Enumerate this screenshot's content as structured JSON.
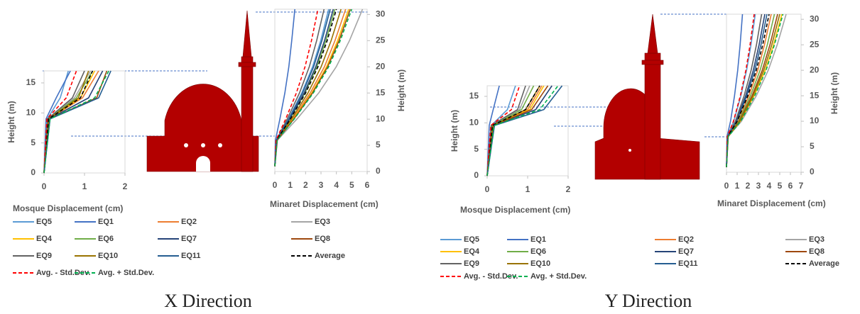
{
  "chart_data": [
    {
      "type": "line",
      "caption": "X Direction",
      "mosque": {
        "xlabel": "Mosque Displacement (cm)",
        "ylabel": "Height (m)",
        "xlim": [
          0,
          2
        ],
        "ylim": [
          0,
          17
        ],
        "xticks": [
          0,
          1,
          2
        ],
        "yticks": [
          0,
          5,
          10,
          15
        ],
        "heights": [
          0,
          9,
          12.5,
          17
        ]
      },
      "minaret": {
        "xlabel": "Minaret Displacement (cm)",
        "ylabel": "Height (m)",
        "xlim": [
          0,
          6
        ],
        "ylim": [
          0,
          31
        ],
        "xticks": [
          0,
          1,
          2,
          3,
          4,
          5,
          6
        ],
        "yticks": [
          0,
          5,
          10,
          15,
          20,
          25,
          30
        ],
        "heights": [
          1,
          6,
          10,
          15,
          20,
          25,
          31
        ]
      },
      "series": [
        {
          "name": "EQ5",
          "color": "#5b9bd5",
          "dash": false,
          "mosque": [
            0,
            0.08,
            0.4,
            0.6
          ],
          "minaret": [
            0,
            0.1,
            0.88,
            1.75,
            2.45,
            2.98,
            3.5
          ]
        },
        {
          "name": "EQ1",
          "color": "#4472c4",
          "dash": false,
          "mosque": [
            0,
            0.05,
            0.3,
            0.65
          ],
          "minaret": [
            0,
            0.04,
            0.33,
            0.65,
            0.91,
            1.1,
            1.3
          ]
        },
        {
          "name": "EQ2",
          "color": "#ed7d31",
          "dash": false,
          "mosque": [
            0,
            0.12,
            0.95,
            1.35
          ],
          "minaret": [
            0,
            0.14,
            1.15,
            2.3,
            3.22,
            3.91,
            4.6
          ]
        },
        {
          "name": "EQ3",
          "color": "#a5a5a5",
          "dash": false,
          "mosque": [
            0,
            0.1,
            0.75,
            1.15
          ],
          "minaret": [
            0,
            0.17,
            1.43,
            2.85,
            3.99,
            4.85,
            5.7
          ]
        },
        {
          "name": "EQ4",
          "color": "#ffc000",
          "dash": false,
          "mosque": [
            0,
            0.12,
            0.9,
            1.25
          ],
          "minaret": [
            0,
            0.14,
            1.2,
            2.4,
            3.36,
            4.08,
            4.8
          ]
        },
        {
          "name": "EQ6",
          "color": "#70ad47",
          "dash": false,
          "mosque": [
            0,
            0.1,
            0.8,
            1.2
          ],
          "minaret": [
            0,
            0.12,
            0.98,
            1.95,
            2.73,
            3.32,
            3.9
          ]
        },
        {
          "name": "EQ7",
          "color": "#264478",
          "dash": false,
          "mosque": [
            0,
            0.13,
            1.1,
            1.45
          ],
          "minaret": [
            0,
            0.11,
            0.95,
            1.9,
            2.66,
            3.23,
            3.8
          ]
        },
        {
          "name": "EQ8",
          "color": "#9e480e",
          "dash": false,
          "mosque": [
            0,
            0.14,
            1.3,
            1.55
          ],
          "minaret": [
            0,
            0.15,
            1.23,
            2.45,
            3.43,
            4.17,
            4.9
          ]
        },
        {
          "name": "EQ9",
          "color": "#636363",
          "dash": false,
          "mosque": [
            0,
            0.09,
            0.7,
            1.0
          ],
          "minaret": [
            0,
            0.1,
            0.8,
            1.6,
            2.24,
            2.72,
            3.2
          ]
        },
        {
          "name": "EQ10",
          "color": "#997300",
          "dash": false,
          "mosque": [
            0,
            0.11,
            0.85,
            1.1
          ],
          "minaret": [
            0,
            0.13,
            1.08,
            2.15,
            3.01,
            3.66,
            4.3
          ]
        },
        {
          "name": "EQ11",
          "color": "#255e91",
          "dash": false,
          "mosque": [
            0,
            0.15,
            1.35,
            1.65
          ],
          "minaret": [
            0,
            0.11,
            0.9,
            1.8,
            2.52,
            3.06,
            3.6
          ]
        },
        {
          "name": "Average",
          "color": "#000000",
          "dash": true,
          "mosque": [
            0,
            0.11,
            0.9,
            1.2
          ],
          "minaret": [
            0,
            0.12,
            1.0,
            2.0,
            2.8,
            3.4,
            4.0
          ]
        },
        {
          "name": "Avg. - Std.Dev.",
          "color": "#ff0000",
          "dash": true,
          "mosque": [
            0,
            0.07,
            0.55,
            0.8
          ],
          "minaret": [
            0,
            0.08,
            0.7,
            1.4,
            1.96,
            2.38,
            2.8
          ]
        },
        {
          "name": "Avg. + Std.Dev.",
          "color": "#00b050",
          "dash": true,
          "mosque": [
            0,
            0.15,
            1.25,
            1.6
          ],
          "minaret": [
            0,
            0.15,
            1.25,
            2.5,
            3.5,
            4.25,
            5.0
          ]
        }
      ]
    },
    {
      "type": "line",
      "caption": "Y Direction",
      "mosque": {
        "xlabel": "Mosque Displacement (cm)",
        "ylabel": "Height (m)",
        "xlim": [
          0,
          2
        ],
        "ylim": [
          0,
          17
        ],
        "xticks": [
          0,
          1,
          2
        ],
        "yticks": [
          0,
          5,
          10,
          15
        ],
        "heights": [
          0,
          9.5,
          12.5,
          17
        ]
      },
      "minaret": {
        "xlabel": "Minaret Displacement (cm)",
        "ylabel": "Height (m)",
        "xlim": [
          0,
          7
        ],
        "ylim": [
          0,
          31
        ],
        "xticks": [
          0,
          1,
          2,
          3,
          4,
          5,
          6,
          7
        ],
        "yticks": [
          0,
          5,
          10,
          15,
          20,
          25,
          30
        ],
        "heights": [
          1,
          7,
          10,
          15,
          20,
          25,
          31
        ]
      },
      "series": [
        {
          "name": "EQ5",
          "color": "#5b9bd5",
          "dash": false,
          "mosque": [
            0,
            0.1,
            0.5,
            0.7
          ],
          "minaret": [
            0,
            0.08,
            0.68,
            1.35,
            1.89,
            2.3,
            2.7
          ]
        },
        {
          "name": "EQ1",
          "color": "#4472c4",
          "dash": false,
          "mosque": [
            0,
            0.05,
            0.15,
            0.3
          ],
          "minaret": [
            0,
            0.05,
            0.38,
            0.75,
            1.05,
            1.28,
            1.5
          ]
        },
        {
          "name": "EQ2",
          "color": "#ed7d31",
          "dash": false,
          "mosque": [
            0,
            0.15,
            1.0,
            1.35
          ],
          "minaret": [
            0,
            0.13,
            1.05,
            2.1,
            2.94,
            3.57,
            4.2
          ]
        },
        {
          "name": "EQ3",
          "color": "#a5a5a5",
          "dash": false,
          "mosque": [
            0,
            0.12,
            0.8,
            1.05
          ],
          "minaret": [
            0,
            0.17,
            1.4,
            2.8,
            3.92,
            4.76,
            5.6
          ]
        },
        {
          "name": "EQ4",
          "color": "#ffc000",
          "dash": false,
          "mosque": [
            0,
            0.14,
            1.05,
            1.4
          ],
          "minaret": [
            0,
            0.16,
            1.3,
            2.6,
            3.64,
            4.42,
            5.2
          ]
        },
        {
          "name": "EQ6",
          "color": "#70ad47",
          "dash": false,
          "mosque": [
            0,
            0.12,
            0.85,
            1.15
          ],
          "minaret": [
            0,
            0.14,
            1.13,
            2.25,
            3.15,
            3.83,
            4.5
          ]
        },
        {
          "name": "EQ7",
          "color": "#264478",
          "dash": false,
          "mosque": [
            0,
            0.16,
            1.2,
            1.6
          ],
          "minaret": [
            0,
            0.11,
            0.9,
            1.8,
            2.52,
            3.06,
            3.6
          ]
        },
        {
          "name": "EQ8",
          "color": "#9e480e",
          "dash": false,
          "mosque": [
            0,
            0.15,
            1.1,
            1.5
          ],
          "minaret": [
            0,
            0.14,
            1.2,
            2.4,
            3.36,
            4.08,
            4.8
          ]
        },
        {
          "name": "EQ9",
          "color": "#636363",
          "dash": false,
          "mosque": [
            0,
            0.1,
            0.75,
            0.95
          ],
          "minaret": [
            0,
            0.1,
            0.83,
            1.65,
            2.31,
            2.81,
            3.3
          ]
        },
        {
          "name": "EQ10",
          "color": "#997300",
          "dash": false,
          "mosque": [
            0,
            0.14,
            0.95,
            1.3
          ],
          "minaret": [
            0,
            0.15,
            1.25,
            2.5,
            3.5,
            4.25,
            5.0
          ]
        },
        {
          "name": "EQ11",
          "color": "#255e91",
          "dash": false,
          "mosque": [
            0,
            0.18,
            1.4,
            1.85
          ],
          "minaret": [
            0,
            0.11,
            0.95,
            1.9,
            2.66,
            3.23,
            3.8
          ]
        },
        {
          "name": "Average",
          "color": "#000000",
          "dash": true,
          "mosque": [
            0,
            0.13,
            0.95,
            1.3
          ],
          "minaret": [
            0,
            0.12,
            1.0,
            2.0,
            2.8,
            3.4,
            4.0
          ]
        },
        {
          "name": "Avg. - Std.Dev.",
          "color": "#ff0000",
          "dash": true,
          "mosque": [
            0,
            0.09,
            0.6,
            0.8
          ],
          "minaret": [
            0,
            0.08,
            0.65,
            1.3,
            1.82,
            2.21,
            2.6
          ]
        },
        {
          "name": "Avg. + Std.Dev.",
          "color": "#00b050",
          "dash": true,
          "mosque": [
            0,
            0.17,
            1.3,
            1.75
          ],
          "minaret": [
            0,
            0.16,
            1.33,
            2.65,
            3.71,
            4.5,
            5.3
          ]
        }
      ]
    }
  ]
}
